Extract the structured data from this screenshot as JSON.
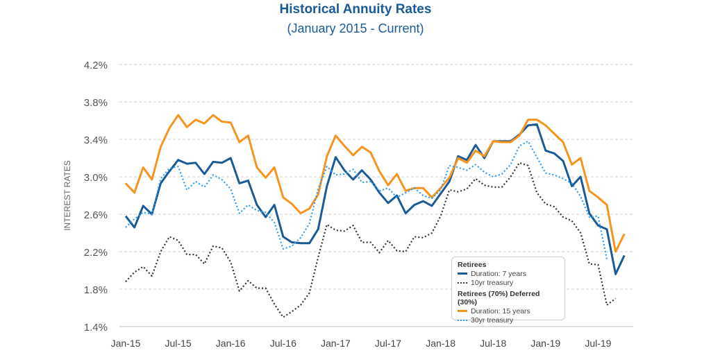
{
  "chart_data": {
    "type": "line",
    "title": "Historical Annuity Rates",
    "subtitle": "(January 2015 - Current)",
    "ylabel": "INTEREST RATES",
    "xlabel": "",
    "ylim": [
      1.4,
      4.2
    ],
    "yticks": [
      "1.4%",
      "1.8%",
      "2.2%",
      "2.6%",
      "3.0%",
      "3.4%",
      "3.8%",
      "4.2%"
    ],
    "xticks": [
      "Jan-15",
      "Jul-15",
      "Jan-16",
      "Jul-16",
      "Jan-17",
      "Jul-17",
      "Jan-18",
      "Jul-18",
      "Jan-19",
      "Jul-19"
    ],
    "grid": true,
    "legend_position": "bottom-right",
    "legend_groups": [
      {
        "title": "Retirees",
        "entries": [
          "Duration: 7 years",
          "10yr treasury"
        ]
      },
      {
        "title": "Retirees (70%) Deferred (30%)",
        "entries": [
          "Duration: 15 years",
          "30yr treasury"
        ]
      }
    ],
    "series": [
      {
        "name": "Duration: 7 years",
        "color": "#1a5a96",
        "style": "solid",
        "values": [
          2.58,
          2.46,
          2.69,
          2.6,
          2.93,
          3.06,
          3.18,
          3.14,
          3.15,
          3.03,
          3.16,
          3.15,
          3.2,
          2.93,
          2.96,
          2.7,
          2.57,
          2.7,
          2.36,
          2.3,
          2.29,
          2.29,
          2.44,
          2.9,
          3.21,
          3.07,
          2.97,
          3.07,
          2.97,
          2.83,
          2.72,
          2.8,
          2.61,
          2.7,
          2.74,
          2.69,
          2.82,
          2.95,
          3.22,
          3.18,
          3.34,
          3.2,
          3.38,
          3.38,
          3.38,
          3.45,
          3.55,
          3.56,
          3.28,
          3.25,
          3.17,
          2.9,
          3.0,
          2.61,
          2.48,
          2.44,
          1.96,
          2.16
        ]
      },
      {
        "name": "10yr treasury",
        "color": "#333333",
        "style": "dotted",
        "values": [
          1.88,
          1.98,
          2.04,
          1.94,
          2.2,
          2.36,
          2.32,
          2.17,
          2.17,
          2.07,
          2.26,
          2.24,
          2.09,
          1.78,
          1.89,
          1.81,
          1.81,
          1.64,
          1.5,
          1.56,
          1.63,
          1.76,
          2.14,
          2.49,
          2.43,
          2.42,
          2.48,
          2.3,
          2.3,
          2.19,
          2.32,
          2.21,
          2.2,
          2.36,
          2.35,
          2.4,
          2.58,
          2.86,
          2.84,
          2.87,
          2.98,
          2.91,
          2.89,
          2.89,
          3.0,
          3.15,
          3.12,
          2.83,
          2.71,
          2.68,
          2.57,
          2.53,
          2.4,
          2.07,
          2.06,
          1.63,
          1.7
        ]
      },
      {
        "name": "Duration: 15 years",
        "color": "#f7941d",
        "style": "solid",
        "values": [
          2.93,
          2.83,
          3.1,
          2.97,
          3.32,
          3.52,
          3.66,
          3.53,
          3.61,
          3.57,
          3.66,
          3.59,
          3.58,
          3.37,
          3.44,
          3.1,
          2.99,
          3.1,
          2.78,
          2.71,
          2.61,
          2.66,
          2.81,
          3.22,
          3.44,
          3.33,
          3.23,
          3.32,
          3.26,
          3.06,
          2.91,
          3.03,
          2.85,
          2.88,
          2.88,
          2.78,
          2.88,
          2.99,
          3.2,
          3.15,
          3.28,
          3.22,
          3.38,
          3.37,
          3.37,
          3.44,
          3.61,
          3.61,
          3.55,
          3.46,
          3.37,
          3.13,
          3.2,
          2.85,
          2.78,
          2.7,
          2.2,
          2.39
        ]
      },
      {
        "name": "30yr treasury",
        "color": "#2b9cf0",
        "style": "dotted",
        "values": [
          2.46,
          2.55,
          2.62,
          2.6,
          2.98,
          3.09,
          3.11,
          2.86,
          2.95,
          2.89,
          3.02,
          2.97,
          2.87,
          2.61,
          2.7,
          2.64,
          2.62,
          2.51,
          2.23,
          2.26,
          2.35,
          2.5,
          2.87,
          3.11,
          3.02,
          3.03,
          3.08,
          2.94,
          2.95,
          2.85,
          2.88,
          2.78,
          2.83,
          2.88,
          2.8,
          2.77,
          2.86,
          3.12,
          3.1,
          3.07,
          3.13,
          3.05,
          3.0,
          3.03,
          3.13,
          3.33,
          3.38,
          3.21,
          3.04,
          3.02,
          2.98,
          2.93,
          2.79,
          2.57,
          2.58,
          2.12
        ]
      }
    ]
  }
}
